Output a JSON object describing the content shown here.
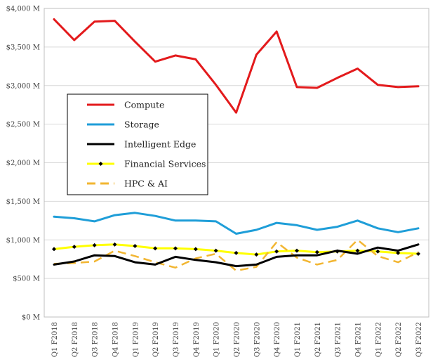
{
  "chart_data": {
    "type": "line",
    "title": "",
    "xlabel": "",
    "ylabel": "",
    "ylim": [
      0,
      4000
    ],
    "grid": true,
    "legend_position": "center-left",
    "categories": [
      "Q1 F2018",
      "Q2 F2018",
      "Q3 F2018",
      "Q4 F2018",
      "Q1 F2019",
      "Q2 F2019",
      "Q3 F2019",
      "Q4 F2019",
      "Q1 F2020",
      "Q2 F2020",
      "Q3 F2020",
      "Q4 F2020",
      "Q1 F2021",
      "Q2 F2021",
      "Q3 F2021",
      "Q4 F2021",
      "Q1 F2022",
      "Q2 F2022",
      "Q3 F2022"
    ],
    "y_ticks": [
      {
        "value": 0,
        "label": "$0 M"
      },
      {
        "value": 500,
        "label": "$500 M"
      },
      {
        "value": 1000,
        "label": "$1,000 M"
      },
      {
        "value": 1500,
        "label": "$1,500 M"
      },
      {
        "value": 2000,
        "label": "$2,000 M"
      },
      {
        "value": 2500,
        "label": "$2,500 M"
      },
      {
        "value": 3000,
        "label": "$3,000 M"
      },
      {
        "value": 3500,
        "label": "$3,500 M"
      },
      {
        "value": 4000,
        "label": "$4,000 M"
      }
    ],
    "series": [
      {
        "name": "Compute",
        "color": "#e31a1c",
        "style": "solid",
        "marker": "none",
        "values": [
          3860,
          3590,
          3830,
          3840,
          3570,
          3310,
          3390,
          3340,
          3010,
          2650,
          3400,
          3700,
          2980,
          2970,
          3100,
          3220,
          3010,
          2980,
          2990
        ]
      },
      {
        "name": "Storage",
        "color": "#1f9ed8",
        "style": "solid",
        "marker": "none",
        "values": [
          1300,
          1280,
          1240,
          1320,
          1350,
          1310,
          1250,
          1250,
          1240,
          1080,
          1130,
          1220,
          1190,
          1130,
          1170,
          1250,
          1150,
          1100,
          1150
        ]
      },
      {
        "name": "Intelligent Edge",
        "color": "#000000",
        "style": "solid",
        "marker": "none",
        "values": [
          680,
          720,
          800,
          790,
          710,
          680,
          780,
          740,
          710,
          660,
          680,
          780,
          800,
          800,
          860,
          820,
          900,
          860,
          940
        ]
      },
      {
        "name": "Financial Services",
        "color": "#ffff00",
        "style": "solid",
        "marker": "diamond",
        "values": [
          880,
          910,
          930,
          940,
          920,
          890,
          890,
          880,
          860,
          830,
          810,
          850,
          860,
          840,
          850,
          860,
          850,
          830,
          820
        ]
      },
      {
        "name": "HPC & AI",
        "color": "#f2b632",
        "style": "dashed",
        "marker": "none",
        "values": [
          690,
          700,
          720,
          860,
          790,
          710,
          640,
          760,
          820,
          600,
          650,
          970,
          770,
          680,
          740,
          1000,
          790,
          710,
          840
        ]
      }
    ]
  }
}
